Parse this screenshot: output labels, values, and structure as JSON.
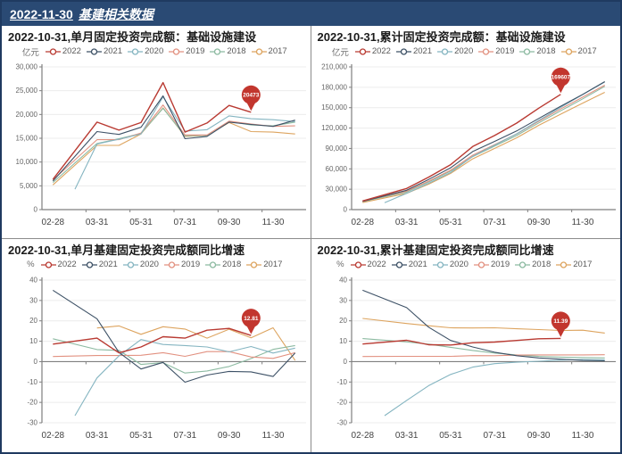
{
  "header": {
    "date": "2022-11-30",
    "title": "基建相关数据"
  },
  "palette": {
    "header_bg": "#2a4a74",
    "frame": "#1f3a60",
    "divider": "#8c8c8c",
    "grid_line": "#ececec",
    "axis_line": "#7f7f7f",
    "tick_text": "#666666",
    "xlabel_text": "#444444",
    "title_text": "#1b1b1b",
    "callout_fill": "#c2362e",
    "callout_text": "#ffffff"
  },
  "legend": {
    "years": [
      "2022",
      "2021",
      "2020",
      "2019",
      "2018",
      "2017"
    ],
    "colors": [
      "#b93a32",
      "#3d5166",
      "#85b5c1",
      "#e29180",
      "#8cbaa1",
      "#dda45f"
    ]
  },
  "x_axis": {
    "slots": [
      "02-28",
      "02-29",
      "03-31",
      "04-30",
      "05-31",
      "06-30",
      "07-31",
      "08-31",
      "09-30",
      "10-31",
      "11-30",
      "12-31"
    ],
    "label_indices": [
      0,
      2,
      4,
      6,
      8,
      10
    ],
    "labels": [
      "02-28",
      "03-31",
      "05-31",
      "07-31",
      "09-30",
      "11-30"
    ]
  },
  "chart_data": [
    {
      "type": "line",
      "title": "2022-10-31,单月固定投资完成额：基础设施建设",
      "unit": "亿元",
      "ylim": [
        0,
        30000
      ],
      "yticks": [
        0,
        5000,
        10000,
        15000,
        20000,
        25000,
        30000
      ],
      "ytick_labels": [
        "0",
        "5,000",
        "10,000",
        "15,000",
        "20,000",
        "25,000",
        "30,000"
      ],
      "series": [
        {
          "name": "2022",
          "values": [
            6350,
            null,
            18400,
            16700,
            18300,
            26700,
            16300,
            18200,
            21900,
            20473,
            null,
            null
          ]
        },
        {
          "name": "2021",
          "values": [
            6000,
            null,
            16400,
            15800,
            17300,
            23900,
            14900,
            15400,
            18400,
            17900,
            17500,
            18800
          ]
        },
        {
          "name": "2020",
          "values": [
            null,
            4300,
            13800,
            14800,
            15900,
            23700,
            16500,
            16800,
            19700,
            19100,
            18900,
            18500
          ]
        },
        {
          "name": "2019",
          "values": [
            6200,
            null,
            14700,
            14700,
            16100,
            22000,
            15700,
            15700,
            18600,
            18000,
            17500,
            17600
          ]
        },
        {
          "name": "2018",
          "values": [
            5700,
            null,
            13900,
            14900,
            16000,
            21300,
            15500,
            15600,
            18500,
            17800,
            17600,
            18400
          ]
        },
        {
          "name": "2017",
          "values": [
            5200,
            null,
            13500,
            13500,
            15900,
            21400,
            15400,
            15600,
            18300,
            16400,
            16300,
            15900
          ]
        }
      ],
      "callout": {
        "series": "2022",
        "x": "10-31",
        "slot": 9,
        "value": 20473,
        "label": "20473"
      }
    },
    {
      "type": "line",
      "title": "2022-10-31,累计固定投资完成额：基础设施建设",
      "unit": "亿元",
      "ylim": [
        0,
        210000
      ],
      "yticks": [
        0,
        30000,
        60000,
        90000,
        120000,
        150000,
        180000,
        210000
      ],
      "ytick_labels": [
        "0",
        "30,000",
        "60,000",
        "90,000",
        "120,000",
        "150,000",
        "180,000",
        "210,000"
      ],
      "series": [
        {
          "name": "2022",
          "values": [
            12700,
            null,
            31100,
            47800,
            66100,
            92800,
            109100,
            127300,
            149200,
            169607,
            null,
            null
          ]
        },
        {
          "name": "2021",
          "values": [
            12100,
            null,
            28500,
            44300,
            61600,
            85500,
            100400,
            115800,
            134200,
            152100,
            169600,
            188400
          ]
        },
        {
          "name": "2020",
          "values": [
            null,
            10100,
            23900,
            38700,
            54600,
            78300,
            94800,
            111600,
            131300,
            150400,
            169300,
            187800
          ]
        },
        {
          "name": "2019",
          "values": [
            12500,
            null,
            27200,
            41900,
            58000,
            80000,
            95700,
            111400,
            130000,
            148000,
            165500,
            183100
          ]
        },
        {
          "name": "2018",
          "values": [
            11900,
            null,
            25800,
            40700,
            56700,
            78000,
            93500,
            109100,
            127600,
            145400,
            163000,
            181400
          ]
        },
        {
          "name": "2017",
          "values": [
            10400,
            null,
            23900,
            37400,
            53300,
            74700,
            90100,
            105700,
            124000,
            140400,
            156700,
            172600
          ]
        }
      ],
      "callout": {
        "series": "2022",
        "x": "10-31",
        "slot": 9,
        "value": 169607,
        "label": "169607"
      }
    },
    {
      "type": "line",
      "title": "2022-10-31,单月基建固定投资完成额同比增速",
      "unit": "%",
      "ylim": [
        -30,
        40
      ],
      "yticks": [
        -30,
        -20,
        -10,
        0,
        10,
        20,
        30,
        40
      ],
      "ytick_labels": [
        "-30",
        "-20",
        "-10",
        "0",
        "10",
        "20",
        "30",
        "40"
      ],
      "series": [
        {
          "name": "2022",
          "values": [
            8.6,
            null,
            11.5,
            4.3,
            7.2,
            12.2,
            11.5,
            15.4,
            16.3,
            12.81,
            null,
            null
          ]
        },
        {
          "name": "2021",
          "values": [
            35.0,
            null,
            21.0,
            4.5,
            -3.6,
            -0.4,
            -10.1,
            -6.6,
            -4.8,
            -5.0,
            -7.3,
            4.2
          ]
        },
        {
          "name": "2020",
          "values": [
            null,
            -26.5,
            -8.0,
            2.8,
            10.8,
            8.4,
            7.9,
            7.2,
            4.8,
            7.4,
            4.2,
            6.6
          ]
        },
        {
          "name": "2019",
          "values": [
            2.5,
            null,
            3.0,
            3.0,
            3.1,
            4.4,
            2.6,
            4.9,
            4.9,
            2.3,
            1.6,
            4.4
          ]
        },
        {
          "name": "2018",
          "values": [
            11.2,
            null,
            5.9,
            5.5,
            -1.4,
            -0.5,
            -5.6,
            -4.6,
            -2.4,
            1.5,
            6.0,
            7.9
          ]
        },
        {
          "name": "2017",
          "values": [
            null,
            null,
            16.5,
            17.5,
            13.4,
            17.1,
            16.0,
            11.5,
            15.9,
            11.7,
            16.6,
            0.6
          ]
        }
      ],
      "callout": {
        "series": "2022",
        "x": "10-31",
        "slot": 9,
        "value": 12.81,
        "label": "12.81"
      }
    },
    {
      "type": "line",
      "title": "2022-10-31,累计基建固定投资完成额同比增速",
      "unit": "%",
      "ylim": [
        -30,
        40
      ],
      "yticks": [
        -30,
        -20,
        -10,
        0,
        10,
        20,
        30,
        40
      ],
      "ytick_labels": [
        "-30",
        "-20",
        "-10",
        "0",
        "10",
        "20",
        "30",
        "40"
      ],
      "series": [
        {
          "name": "2022",
          "values": [
            8.61,
            null,
            10.48,
            8.26,
            8.16,
            9.25,
            9.58,
            10.37,
            11.2,
            11.39,
            null,
            null
          ]
        },
        {
          "name": "2021",
          "values": [
            35.0,
            null,
            26.5,
            16.9,
            10.4,
            7.2,
            4.6,
            2.9,
            1.8,
            1.2,
            0.6,
            0.4
          ]
        },
        {
          "name": "2020",
          "values": [
            null,
            -26.5,
            -19.0,
            -11.8,
            -6.3,
            -2.7,
            -1.0,
            -0.3,
            0.2,
            0.7,
            1.0,
            0.9
          ]
        },
        {
          "name": "2019",
          "values": [
            2.5,
            null,
            2.6,
            2.6,
            2.6,
            2.95,
            2.9,
            3.2,
            3.3,
            3.3,
            3.3,
            3.4
          ]
        },
        {
          "name": "2018",
          "values": [
            11.3,
            null,
            9.7,
            8.6,
            7.0,
            5.5,
            4.2,
            3.3,
            2.6,
            2.2,
            2.0,
            1.8
          ]
        },
        {
          "name": "2017",
          "values": [
            21.2,
            null,
            18.7,
            17.6,
            16.6,
            16.5,
            16.6,
            16.1,
            15.7,
            15.3,
            15.4,
            14.0
          ]
        }
      ],
      "callout": {
        "series": "2022",
        "x": "10-31",
        "slot": 9,
        "value": 11.39,
        "label": "11.39"
      }
    }
  ]
}
